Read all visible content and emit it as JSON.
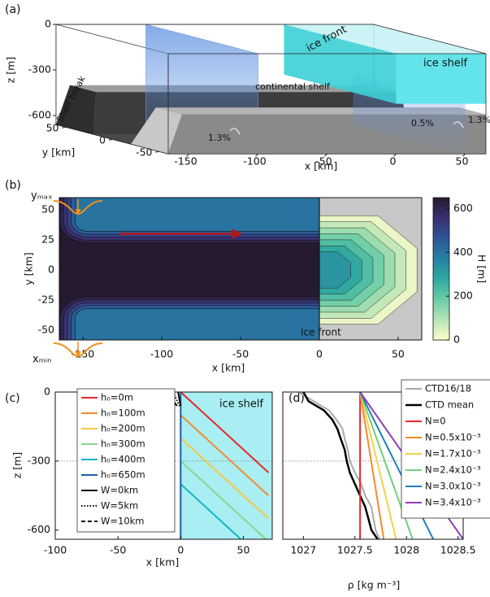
{
  "chart_data": [
    {
      "type": "schematic3d",
      "panel_label": "(a)",
      "xlabel": "x [km]",
      "ylabel": "y [km]",
      "zlabel": "z [m]",
      "xlim": [
        -165,
        65
      ],
      "ylim": [
        -60,
        60
      ],
      "zlim": [
        -660,
        0
      ],
      "xticks": [
        -150,
        -100,
        -50,
        0,
        50
      ],
      "yticks": [
        50,
        0,
        -50
      ],
      "zticks": [
        0,
        -300,
        -600
      ],
      "annotations": [
        "ice front",
        "ice shelf",
        "continental shelf",
        "Shelf break",
        "1.3%",
        "0.5%",
        "1.3%"
      ]
    },
    {
      "type": "heatmap",
      "panel_label": "(b)",
      "xlabel": "x [km]",
      "ylabel": "y [km]",
      "colorbar_label": "H [m]",
      "xlim": [
        -165,
        65
      ],
      "ylim": [
        -58,
        60
      ],
      "xticks": [
        -150,
        -100,
        -50,
        0,
        50
      ],
      "yticks": [
        50,
        25,
        0,
        -25,
        -50
      ],
      "clim": [
        0,
        650
      ],
      "cticks": [
        0,
        200,
        400,
        600
      ],
      "colormap": [
        "#fdfdcc",
        "#b6e4b5",
        "#6acca5",
        "#2fa8a0",
        "#2680a2",
        "#2e5597",
        "#3a2f70",
        "#261a30"
      ],
      "levels": [
        650,
        600,
        550,
        500,
        450,
        400
      ],
      "shelf_levels": [
        25,
        75,
        125,
        175,
        225,
        275,
        325
      ],
      "annotations": [
        "yₘₐₓ",
        "xₘᵢₙ",
        "ice front"
      ]
    },
    {
      "type": "line",
      "panel_label": "(c)",
      "xlabel": "x [km]",
      "ylabel": "z [m]",
      "xlim": [
        -100,
        73
      ],
      "ylim": [
        -640,
        0
      ],
      "xticks": [
        -100,
        -50,
        0,
        50
      ],
      "yticks": [
        0,
        -300,
        -600
      ],
      "hline": -300,
      "shaded_region": [
        0,
        73
      ],
      "annotations": [
        "ice shelf"
      ],
      "series": [
        {
          "name": "h₀=0m",
          "color": "#e8282b",
          "dash": "solid",
          "x": [
            0,
            70
          ],
          "values": [
            0,
            -350
          ]
        },
        {
          "name": "h₀=100m",
          "color": "#f5892b",
          "dash": "solid",
          "x": [
            0,
            70
          ],
          "values": [
            -100,
            -450
          ]
        },
        {
          "name": "h₀=200m",
          "color": "#f3c945",
          "dash": "solid",
          "x": [
            0,
            70
          ],
          "values": [
            -200,
            -550
          ]
        },
        {
          "name": "h₀=300m",
          "color": "#86d68e",
          "dash": "solid",
          "x": [
            0,
            68
          ],
          "values": [
            -300,
            -640
          ]
        },
        {
          "name": "h₀=400m",
          "color": "#17b2c8",
          "dash": "solid",
          "x": [
            0,
            48
          ],
          "values": [
            -400,
            -640
          ]
        },
        {
          "name": "h₀=650m",
          "color": "#1b5ea8",
          "dash": "solid",
          "x": [
            0,
            0
          ],
          "values": [
            0,
            -640
          ]
        },
        {
          "name": "W=0km",
          "color": "#000000",
          "dash": "solid",
          "x": [
            -2,
            0
          ],
          "values": [
            0,
            -60
          ]
        },
        {
          "name": "W=5km",
          "color": "#000000",
          "dash": "dotted",
          "x": [
            -6,
            -1
          ],
          "values": [
            0,
            -60
          ]
        },
        {
          "name": "W=10km",
          "color": "#000000",
          "dash": "dashed",
          "x": [
            -11,
            -3
          ],
          "values": [
            0,
            -60
          ]
        }
      ]
    },
    {
      "type": "line",
      "panel_label": "(d)",
      "xlabel": "ρ [kg m⁻³]",
      "xlim": [
        1026.8,
        1028.55
      ],
      "ylim": [
        -640,
        0
      ],
      "xticks": [
        1027,
        1027.5,
        1028,
        1028.5
      ],
      "hline": -300,
      "series": [
        {
          "name": "CTD16/18",
          "color": "#aaaaaa",
          "dash": "solid",
          "x": [
            1026.95,
            1027.1,
            1027.25,
            1027.32,
            1027.38,
            1027.4,
            1027.43,
            1027.45,
            1027.5,
            1027.56,
            1027.6,
            1027.66,
            1027.68,
            1027.7,
            1027.74
          ],
          "values": [
            0,
            -40,
            -80,
            -120,
            -160,
            -200,
            -250,
            -300,
            -350,
            -400,
            -450,
            -500,
            -550,
            -600,
            -640
          ]
        },
        {
          "name": "CTD mean",
          "color": "#000000",
          "dash": "solid",
          "width": 2.5,
          "x": [
            1027.0,
            1027.05,
            1027.2,
            1027.28,
            1027.33,
            1027.36,
            1027.4,
            1027.42,
            1027.45,
            1027.5,
            1027.55,
            1027.6,
            1027.63,
            1027.66,
            1027.72
          ],
          "values": [
            0,
            -40,
            -80,
            -120,
            -160,
            -200,
            -250,
            -300,
            -350,
            -400,
            -450,
            -500,
            -550,
            -600,
            -640
          ]
        },
        {
          "name": "N=0",
          "color": "#e8282b",
          "dash": "solid",
          "x": [
            1027.55,
            1027.55
          ],
          "values": [
            0,
            -640
          ]
        },
        {
          "name": "N=0.5x10⁻³",
          "color": "#f5892b",
          "dash": "solid",
          "x": [
            1027.55,
            1027.78
          ],
          "values": [
            0,
            -640
          ]
        },
        {
          "name": "N=1.7x10⁻³",
          "color": "#f3d34a",
          "dash": "solid",
          "x": [
            1027.55,
            1027.9
          ],
          "values": [
            0,
            -640
          ]
        },
        {
          "name": "N=2.4x10⁻³",
          "color": "#6fcf7c",
          "dash": "solid",
          "x": [
            1027.55,
            1028.06
          ],
          "values": [
            0,
            -640
          ]
        },
        {
          "name": "N=3.0x10⁻³",
          "color": "#1f7fc0",
          "dash": "solid",
          "x": [
            1027.55,
            1028.26
          ],
          "values": [
            0,
            -640
          ]
        },
        {
          "name": "N=3.4x10⁻³",
          "color": "#8e3fb5",
          "dash": "solid",
          "x": [
            1027.55,
            1028.55
          ],
          "values": [
            0,
            -640
          ]
        }
      ]
    }
  ]
}
